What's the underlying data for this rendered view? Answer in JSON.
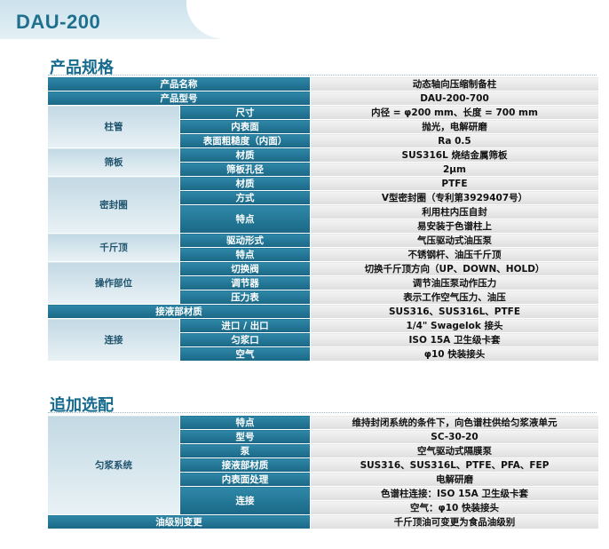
{
  "model": "DAU-200",
  "sections": {
    "spec_title": "产品规格",
    "option_title": "追加选配"
  },
  "spec": {
    "product_name": {
      "label": "产品名称",
      "value": "动态轴向压缩制备柱"
    },
    "product_model": {
      "label": "产品型号",
      "value": "DAU-200-700"
    },
    "column_tube": {
      "group": "柱管",
      "size": {
        "label": "尺寸",
        "value": "内径 = φ200 mm、长度 = 700 mm"
      },
      "inner_surface": {
        "label": "内表面",
        "value": "抛光，电解研磨"
      },
      "roughness": {
        "label": "表面粗糙度（内面）",
        "value": "Ra 0.5"
      }
    },
    "sieve": {
      "group": "筛板",
      "material": {
        "label": "材质",
        "value": "SUS316L 烧结金属筛板"
      },
      "pore": {
        "label": "筛板孔径",
        "value": "2μm"
      }
    },
    "seal": {
      "group": "密封圈",
      "material": {
        "label": "材质",
        "value": "PTFE"
      },
      "method": {
        "label": "方式",
        "value": "V型密封圈（专利第3929407号）"
      },
      "feature": {
        "label": "特点",
        "value1": "利用柱内压自封",
        "value2": "易安装于色谱柱上"
      }
    },
    "jack": {
      "group": "千斤顶",
      "drive": {
        "label": "驱动形式",
        "value": "气压驱动式油压泵"
      },
      "feature": {
        "label": "特点",
        "value": "不锈钢杆、油压千斤顶"
      }
    },
    "operation": {
      "group": "操作部位",
      "valve": {
        "label": "切换阀",
        "value": "切换千斤顶方向（UP、DOWN、HOLD）"
      },
      "regulator": {
        "label": "调节器",
        "value": "调节油压泵动作压力"
      },
      "gauge": {
        "label": "压力表",
        "value": "表示工作空气压力、油压"
      }
    },
    "wetted": {
      "label": "接液部材质",
      "value": "SUS316、SUS316L、PTFE"
    },
    "connection": {
      "group": "连接",
      "inout": {
        "label": "进口 / 出口",
        "value": "1/4\" Swagelok 接头"
      },
      "slurry_port": {
        "label": "匀浆口",
        "value": "ISO 15A 卫生级卡套"
      },
      "air": {
        "label": "空气",
        "value": "φ10 快装接头"
      }
    }
  },
  "options": {
    "slurry_system": {
      "group": "匀浆系统",
      "feature": {
        "label": "特点",
        "value": "维持封闭系统的条件下，向色谱柱供给匀浆液单元"
      },
      "model": {
        "label": "型号",
        "value": "SC-30-20"
      },
      "pump": {
        "label": "泵",
        "value": "空气驱动式隔膜泵"
      },
      "wetted": {
        "label": "接液部材质",
        "value": "SUS316、SUS316L、PTFE、PFA、FEP"
      },
      "inner_surface": {
        "label": "内表面处理",
        "value": "电解研磨"
      },
      "connection": {
        "label": "连接",
        "value1": "色谱柱连接：ISO 15A 卫生级卡套",
        "value2": "空气：φ10 快装接头"
      }
    },
    "oil_grade": {
      "label": "油级别变更",
      "value": "千斤顶油可变更为食品油级别"
    }
  }
}
